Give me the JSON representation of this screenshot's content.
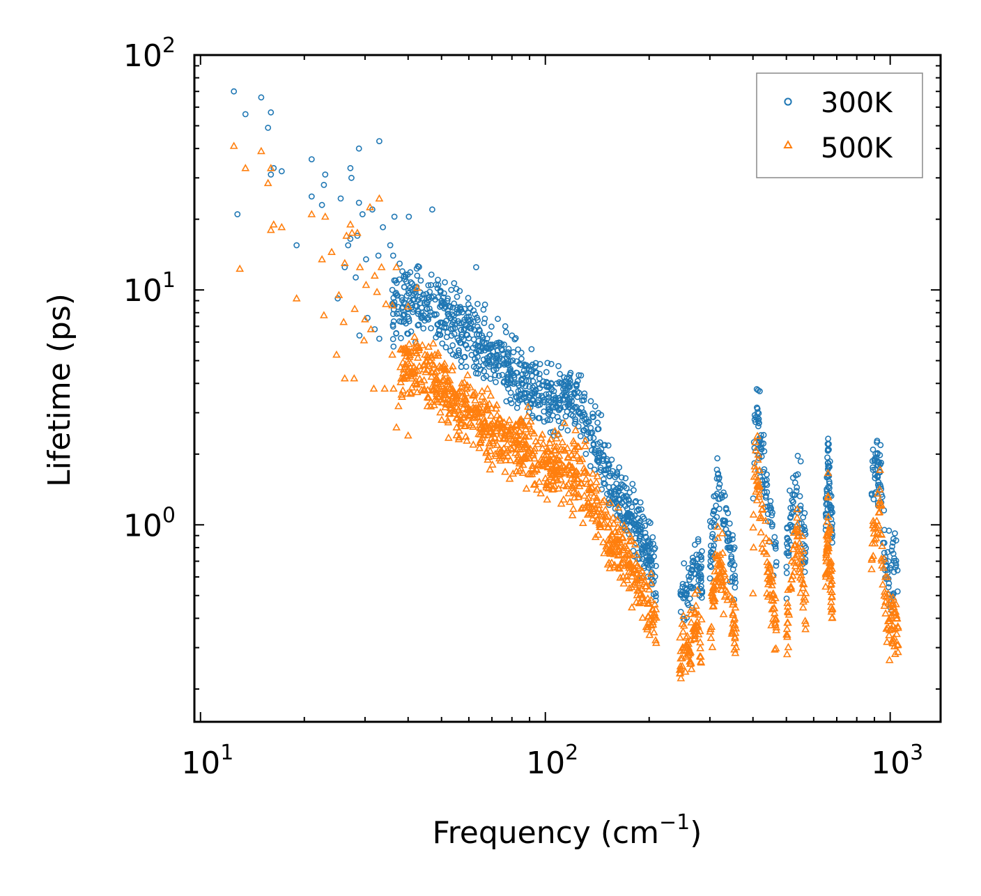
{
  "chart_data": {
    "type": "scatter",
    "xscale": "log",
    "yscale": "log",
    "xlim": [
      9.6,
      1400
    ],
    "ylim": [
      0.145,
      100
    ],
    "xlabel": "Frequency (cm",
    "xlabel_exp": "−1",
    "xlabel_suffix": ")",
    "ylabel": "Lifetime (ps)",
    "xticks": [
      {
        "value": 10,
        "base": "10",
        "exp": "1"
      },
      {
        "value": 100,
        "base": "10",
        "exp": "2"
      },
      {
        "value": 1000,
        "base": "10",
        "exp": "3"
      }
    ],
    "yticks": [
      {
        "value": 1,
        "base": "10",
        "exp": "0"
      },
      {
        "value": 10,
        "base": "10",
        "exp": "1"
      },
      {
        "value": 100,
        "base": "10",
        "exp": "2"
      }
    ],
    "legend": {
      "position": "top-right"
    },
    "series": [
      {
        "name": "300K",
        "marker": "circle",
        "color": "#1f77b4",
        "points": [
          [
            12.5,
            70
          ],
          [
            15,
            66
          ],
          [
            13.5,
            56
          ],
          [
            16,
            57
          ],
          [
            15.7,
            49
          ],
          [
            16.3,
            33
          ],
          [
            16,
            31
          ],
          [
            17.2,
            32
          ],
          [
            21,
            36
          ],
          [
            12.8,
            21
          ],
          [
            23,
            31
          ],
          [
            22.8,
            28
          ],
          [
            27.2,
            33
          ],
          [
            27.4,
            30
          ],
          [
            28.8,
            40
          ],
          [
            33,
            43
          ],
          [
            47,
            22
          ],
          [
            21,
            25
          ],
          [
            22.5,
            23
          ],
          [
            25.5,
            24.5
          ],
          [
            28.8,
            23.5
          ],
          [
            29.5,
            21
          ],
          [
            31.5,
            22
          ],
          [
            36.5,
            20.5
          ],
          [
            40.2,
            20.5
          ],
          [
            19,
            15.5
          ],
          [
            26.8,
            15.5
          ],
          [
            27.2,
            16.5
          ],
          [
            28.5,
            17
          ],
          [
            33.8,
            18.5
          ],
          [
            35.5,
            15.5
          ],
          [
            26.2,
            12.5
          ],
          [
            30.2,
            13.5
          ],
          [
            32.8,
            14
          ],
          [
            36.2,
            14
          ],
          [
            38.5,
            12
          ],
          [
            42.5,
            11.5
          ],
          [
            63,
            12.5
          ],
          [
            25,
            9.2
          ],
          [
            28.2,
            11.3
          ],
          [
            30.5,
            7.6
          ],
          [
            36,
            10
          ],
          [
            40,
            6.5
          ],
          [
            42,
            6
          ],
          [
            28.9,
            6.4
          ],
          [
            32,
            6.8
          ],
          [
            33,
            6.2
          ],
          [
            80,
            6.4
          ]
        ],
        "bands": [
          [
            [
              36,
              8
            ],
            [
              40,
              9.5
            ],
            [
              50,
              7.8
            ],
            [
              60,
              6.5
            ],
            [
              70,
              5.3
            ],
            [
              80,
              4.4
            ],
            [
              90,
              3.8
            ],
            [
              100,
              3.5
            ],
            [
              110,
              3.4
            ],
            [
              120,
              3.5
            ],
            [
              130,
              3.0
            ],
            [
              140,
              2.4
            ],
            [
              150,
              1.7
            ],
            [
              170,
              1.25
            ],
            [
              185,
              1.0
            ],
            [
              195,
              0.82
            ],
            [
              205,
              0.65
            ],
            [
              210,
              0.58
            ]
          ],
          [
            [
              245,
              0.45
            ],
            [
              255,
              0.52
            ],
            [
              265,
              0.6
            ],
            [
              275,
              0.72
            ],
            [
              285,
              0.6
            ]
          ],
          [
            [
              300,
              0.7
            ],
            [
              308,
              1.0
            ],
            [
              315,
              1.45
            ],
            [
              322,
              1.35
            ],
            [
              330,
              1.05
            ],
            [
              342,
              0.82
            ],
            [
              358,
              0.6
            ]
          ],
          [
            [
              400,
              1.2
            ],
            [
              405,
              2.8
            ],
            [
              412,
              2.85
            ],
            [
              420,
              2.2
            ],
            [
              430,
              1.7
            ],
            [
              440,
              1.3
            ],
            [
              455,
              0.9
            ],
            [
              468,
              0.65
            ]
          ],
          [
            [
              500,
              0.7
            ],
            [
              512,
              0.95
            ],
            [
              525,
              1.3
            ],
            [
              540,
              1.55
            ],
            [
              555,
              1.05
            ],
            [
              570,
              0.75
            ]
          ],
          [
            [
              650,
              1.0
            ],
            [
              660,
              1.9
            ],
            [
              668,
              1.4
            ],
            [
              680,
              0.85
            ]
          ],
          [
            [
              880,
              0.9
            ],
            [
              890,
              1.8
            ],
            [
              900,
              1.7
            ],
            [
              920,
              1.75
            ],
            [
              935,
              2.0
            ],
            [
              948,
              1.3
            ],
            [
              970,
              0.75
            ],
            [
              1000,
              0.6
            ],
            [
              1030,
              0.7
            ],
            [
              1055,
              0.65
            ]
          ]
        ]
      },
      {
        "name": "500K",
        "marker": "triangle",
        "color": "#ff7f0e",
        "points": [
          [
            12.5,
            41
          ],
          [
            15,
            39
          ],
          [
            13.5,
            33
          ],
          [
            16,
            33
          ],
          [
            15.7,
            28.5
          ],
          [
            16.3,
            19
          ],
          [
            16,
            18
          ],
          [
            17.2,
            18.5
          ],
          [
            13,
            12.3
          ],
          [
            19,
            9.2
          ],
          [
            21,
            21
          ],
          [
            23,
            20.5
          ],
          [
            27.2,
            19
          ],
          [
            27.5,
            17.5
          ],
          [
            28.5,
            17.5
          ],
          [
            31,
            22.5
          ],
          [
            33,
            24.5
          ],
          [
            22.5,
            13.5
          ],
          [
            24,
            14.5
          ],
          [
            26.2,
            13
          ],
          [
            26.5,
            17
          ],
          [
            29,
            12.5
          ],
          [
            30.2,
            10.5
          ],
          [
            32,
            11.5
          ],
          [
            33.5,
            12.5
          ],
          [
            37,
            12.5
          ],
          [
            42.5,
            10.2
          ],
          [
            22.8,
            7.8
          ],
          [
            25.2,
            9.5
          ],
          [
            26,
            7.3
          ],
          [
            28,
            8.3
          ],
          [
            30,
            7.5
          ],
          [
            31.2,
            6.8
          ],
          [
            32.5,
            9.8
          ],
          [
            34.5,
            8.7
          ],
          [
            36,
            8.6
          ],
          [
            40,
            8.5
          ],
          [
            24.8,
            5.3
          ],
          [
            26.2,
            4.2
          ],
          [
            27.9,
            4.2
          ],
          [
            29.8,
            6.1
          ],
          [
            36,
            5.3
          ],
          [
            40,
            4.6
          ],
          [
            31.8,
            3.8
          ],
          [
            34.2,
            3.8
          ],
          [
            36.3,
            3.8
          ],
          [
            37.5,
            3.2
          ],
          [
            37,
            2.6
          ],
          [
            40,
            2.4
          ],
          [
            45.5,
            3.2
          ]
        ],
        "bands": [
          [
            [
              38,
              4.8
            ],
            [
              45,
              4.5
            ],
            [
              50,
              3.8
            ],
            [
              60,
              3.0
            ],
            [
              70,
              2.6
            ],
            [
              80,
              2.2
            ],
            [
              90,
              2.0
            ],
            [
              100,
              1.85
            ],
            [
              110,
              1.8
            ],
            [
              120,
              1.65
            ],
            [
              130,
              1.45
            ],
            [
              140,
              1.2
            ],
            [
              150,
              0.95
            ],
            [
              160,
              0.82
            ],
            [
              175,
              0.7
            ],
            [
              190,
              0.55
            ],
            [
              200,
              0.45
            ],
            [
              210,
              0.37
            ]
          ],
          [
            [
              245,
              0.26
            ],
            [
              255,
              0.3
            ],
            [
              265,
              0.33
            ],
            [
              275,
              0.38
            ],
            [
              285,
              0.28
            ]
          ],
          [
            [
              300,
              0.35
            ],
            [
              308,
              0.5
            ],
            [
              315,
              0.7
            ],
            [
              322,
              0.68
            ],
            [
              330,
              0.55
            ],
            [
              342,
              0.45
            ],
            [
              358,
              0.35
            ]
          ],
          [
            [
              400,
              0.7
            ],
            [
              405,
              1.75
            ],
            [
              412,
              1.6
            ],
            [
              420,
              1.2
            ],
            [
              430,
              0.95
            ],
            [
              440,
              0.7
            ],
            [
              455,
              0.5
            ],
            [
              468,
              0.37
            ]
          ],
          [
            [
              500,
              0.35
            ],
            [
              512,
              0.5
            ],
            [
              525,
              0.7
            ],
            [
              540,
              0.85
            ],
            [
              555,
              0.6
            ],
            [
              570,
              0.42
            ]
          ],
          [
            [
              650,
              0.55
            ],
            [
              660,
              1.05
            ],
            [
              668,
              0.75
            ],
            [
              680,
              0.45
            ]
          ],
          [
            [
              880,
              0.55
            ],
            [
              890,
              1.0
            ],
            [
              900,
              0.95
            ],
            [
              920,
              1.05
            ],
            [
              935,
              1.2
            ],
            [
              948,
              0.8
            ],
            [
              970,
              0.45
            ],
            [
              1000,
              0.38
            ],
            [
              1030,
              0.42
            ],
            [
              1055,
              0.36
            ]
          ]
        ]
      }
    ]
  }
}
